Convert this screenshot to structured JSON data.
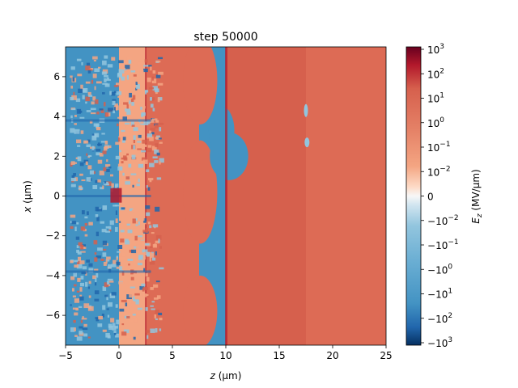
{
  "chart_data": {
    "type": "heatmap",
    "title": "step 50000",
    "xlabel_pre": "z",
    "xlabel_post": " (μm)",
    "ylabel_pre": "x",
    "ylabel_post": " (μm)",
    "xlim": [
      -5,
      25
    ],
    "ylim": [
      -7.5,
      7.5
    ],
    "x_ticks": [
      -5,
      0,
      5,
      10,
      15,
      20,
      25
    ],
    "y_ticks": [
      -6,
      -4,
      -2,
      0,
      2,
      4,
      6
    ],
    "colorbar": {
      "label_pre": "E",
      "label_sub": "z",
      "label_post": " (MV/μm)",
      "scale": "symlog",
      "cmap": "RdBu_r",
      "range": [
        -1000,
        1000
      ],
      "ticks": [
        {
          "base": "10",
          "exp": "3",
          "sign": ""
        },
        {
          "base": "10",
          "exp": "2",
          "sign": ""
        },
        {
          "base": "10",
          "exp": "1",
          "sign": ""
        },
        {
          "base": "10",
          "exp": "0",
          "sign": ""
        },
        {
          "base": "10",
          "exp": "−1",
          "sign": ""
        },
        {
          "base": "10",
          "exp": "−2",
          "sign": ""
        },
        {
          "base": "0",
          "exp": "",
          "sign": ""
        },
        {
          "base": "10",
          "exp": "−2",
          "sign": "−"
        },
        {
          "base": "10",
          "exp": "−1",
          "sign": "−"
        },
        {
          "base": "10",
          "exp": "0",
          "sign": "−"
        },
        {
          "base": "10",
          "exp": "1",
          "sign": "−"
        },
        {
          "base": "10",
          "exp": "2",
          "sign": "−"
        },
        {
          "base": "10",
          "exp": "3",
          "sign": "−"
        }
      ]
    },
    "colors": {
      "red_mid": "#d6604d",
      "red_field": "#dd6b55",
      "red_deep": "#b2182b",
      "blue_mid": "#4393c3",
      "blue_light": "#92c5de",
      "blue_deep": "#2166ac",
      "pale_red": "#f4a582"
    }
  }
}
